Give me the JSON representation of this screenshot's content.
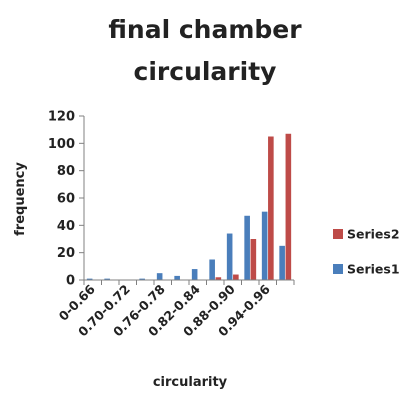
{
  "chart_data": {
    "type": "bar",
    "title_lines": [
      "final chamber",
      "circularity"
    ],
    "xlabel": "circularity",
    "ylabel": "frequency",
    "ylim": [
      0,
      120
    ],
    "yticks": [
      0,
      20,
      40,
      60,
      80,
      100,
      120
    ],
    "categories": [
      "0-0.66",
      "",
      "0.70-0.72",
      "",
      "0.76-0.78",
      "",
      "0.82-0.84",
      "",
      "0.88-0.90",
      "",
      "0.94-0.96",
      ""
    ],
    "series": [
      {
        "name": "Series1",
        "color": "#4a7ebb",
        "values": [
          1,
          1,
          0,
          1,
          5,
          3,
          8,
          15,
          34,
          47,
          50,
          25
        ]
      },
      {
        "name": "Series2",
        "color": "#be4b48",
        "values": [
          0,
          0,
          0,
          0,
          0,
          0,
          0,
          2,
          4,
          30,
          105,
          107
        ]
      }
    ],
    "legend_order": [
      "Series2",
      "Series1"
    ],
    "legend_position": "right",
    "grid": false
  }
}
